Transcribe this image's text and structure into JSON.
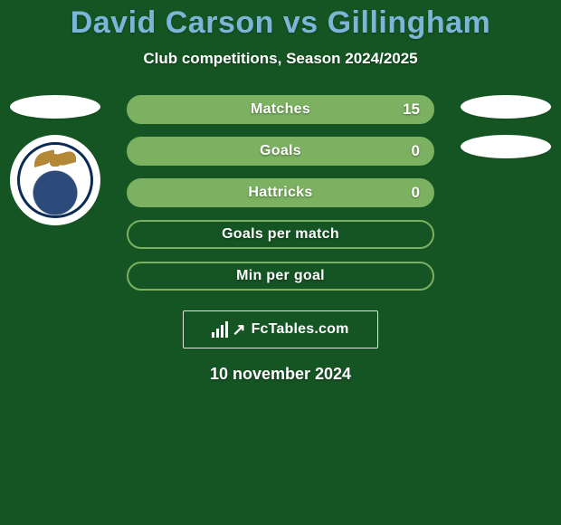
{
  "background_color": "#155423",
  "title": {
    "text": "David Carson vs Gillingham",
    "color": "#7bb6d8"
  },
  "subtitle": "Club competitions, Season 2024/2025",
  "stats": {
    "row_bg_colors": {
      "filled": "#7bb161",
      "border_only": "#7bb161"
    },
    "rows": [
      {
        "label": "Matches",
        "value": "15",
        "has_value": true
      },
      {
        "label": "Goals",
        "value": "0",
        "has_value": true
      },
      {
        "label": "Hattricks",
        "value": "0",
        "has_value": true
      },
      {
        "label": "Goals per match",
        "value": "",
        "has_value": false
      },
      {
        "label": "Min per goal",
        "value": "",
        "has_value": false
      }
    ]
  },
  "left": {
    "placeholder_color": "#ffffff",
    "badge": {
      "outer": "#ffffff",
      "ring": "#0b2b57",
      "thistle": "#2c4a7a",
      "eagle": "#b38836"
    }
  },
  "right": {
    "placeholder_color": "#ffffff"
  },
  "watermark": {
    "brand": "FcTables.com",
    "border_color": "rgba(255,255,255,0.85)"
  },
  "date": "10 november 2024"
}
